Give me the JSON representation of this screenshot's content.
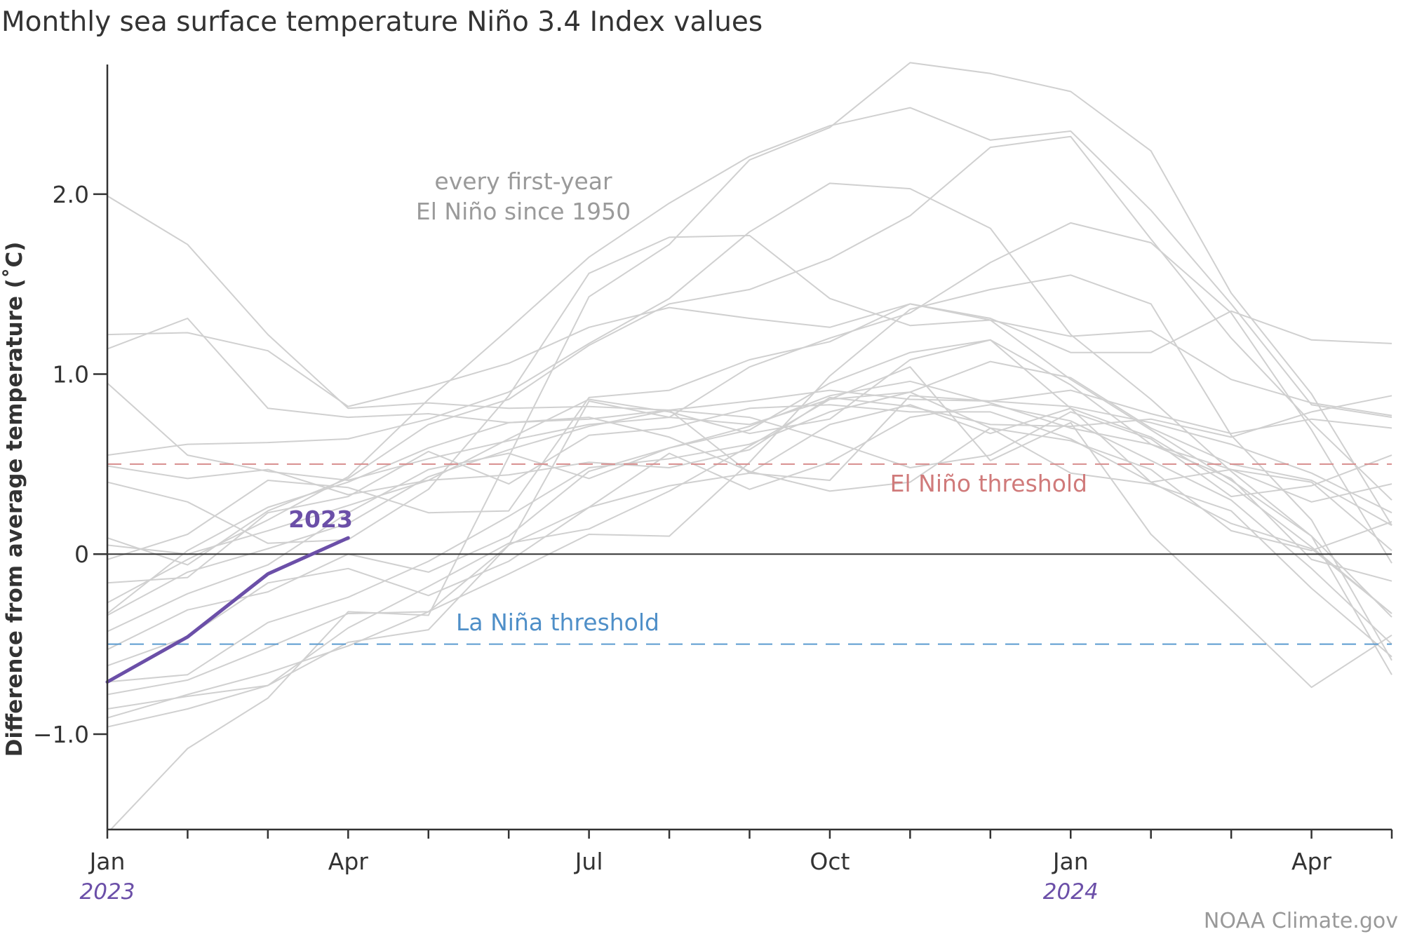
{
  "title": "Monthly sea surface temperature Niño 3.4 Index values",
  "ylabel": "Difference from average temperature (˚C)",
  "credit": "NOAA Climate.gov",
  "colors": {
    "background": "#ffffff",
    "text": "#333333",
    "axis": "#333333",
    "history_line": "#d0d0d0",
    "highlight": "#6b4fa8",
    "el_nino": "#d88e8e",
    "la_nina": "#5b9bd0",
    "annotation_gray": "#9a9a9a",
    "credit": "#999999"
  },
  "annotations": {
    "history_label_line1": "every first-year",
    "history_label_line2": "El Niño since 1950",
    "el_nino_label": "El Niño threshold",
    "la_nina_label": "La Niña threshold",
    "highlight_label": "2023"
  },
  "chart_data": {
    "type": "line",
    "title": "Monthly sea surface temperature Niño 3.4 Index values",
    "xlabel": "",
    "ylabel": "Difference from average temperature (˚C)",
    "x_months": [
      "Jan 2023",
      "Feb 2023",
      "Mar 2023",
      "Apr 2023",
      "May 2023",
      "Jun 2023",
      "Jul 2023",
      "Aug 2023",
      "Sep 2023",
      "Oct 2023",
      "Nov 2023",
      "Dec 2023",
      "Jan 2024",
      "Feb 2024",
      "Mar 2024",
      "Apr 2024",
      "May 2024"
    ],
    "x_tick_labels": [
      "Jan",
      "Apr",
      "Jul",
      "Oct",
      "Jan",
      "Apr"
    ],
    "x_tick_label_months": [
      "Jan 2023",
      "Apr 2023",
      "Jul 2023",
      "Oct 2023",
      "Jan 2024",
      "Apr 2024"
    ],
    "year_labels": [
      "2023",
      "2024"
    ],
    "year_label_months": [
      "Jan 2023",
      "Jan 2024"
    ],
    "y_ticks": [
      2.0,
      1.0,
      0,
      -1.0
    ],
    "y_tick_labels": [
      "2.0",
      "1.0",
      "0",
      "−1.0"
    ],
    "ylim": [
      -1.53,
      2.72
    ],
    "thresholds": [
      {
        "label": "El Niño threshold",
        "value": 0.5
      },
      {
        "label": "La Niña threshold",
        "value": -0.5
      }
    ],
    "highlight_series": {
      "name": "2023",
      "values": [
        -0.71,
        -0.46,
        -0.11,
        0.09
      ]
    },
    "background_series": [
      {
        "values": [
          1.99,
          1.72,
          1.22,
          0.81,
          0.84,
          0.81,
          0.82,
          0.8,
          0.45,
          0.41,
          0.88,
          0.85,
          0.82,
          0.73,
          0.61,
          0.45,
          0.23
        ]
      },
      {
        "values": [
          1.22,
          1.23,
          1.13,
          0.82,
          0.93,
          1.06,
          1.26,
          1.37,
          1.31,
          1.26,
          1.39,
          1.3,
          1.21,
          1.24,
          0.97,
          0.84,
          0.77
        ]
      },
      {
        "values": [
          1.14,
          1.31,
          0.81,
          0.76,
          0.78,
          0.73,
          0.75,
          0.8,
          0.85,
          0.91,
          0.86,
          0.85,
          0.91,
          0.78,
          0.67,
          0.75,
          0.7
        ]
      },
      {
        "values": [
          0.95,
          0.55,
          0.46,
          0.41,
          0.53,
          0.63,
          0.72,
          0.76,
          0.72,
          0.86,
          0.9,
          1.07,
          0.98,
          0.7,
          0.5,
          0.41,
          0.16
        ]
      },
      {
        "values": [
          0.55,
          0.61,
          0.62,
          0.64,
          0.75,
          0.9,
          1.17,
          1.42,
          1.79,
          2.06,
          2.03,
          1.81,
          1.22,
          0.86,
          0.46,
          0.1,
          -0.35
        ]
      },
      {
        "values": [
          0.49,
          0.42,
          0.47,
          0.33,
          0.41,
          0.44,
          0.51,
          0.48,
          0.58,
          0.87,
          0.82,
          0.72,
          0.71,
          0.75,
          0.65,
          0.79,
          0.88
        ]
      },
      {
        "values": [
          0.4,
          0.29,
          0.06,
          0.08,
          0.36,
          0.88,
          1.56,
          1.76,
          1.77,
          1.42,
          1.27,
          1.3,
          0.97,
          0.69,
          0.41,
          0.1,
          -0.67
        ]
      },
      {
        "values": [
          0.09,
          -0.06,
          0.24,
          0.42,
          0.72,
          0.86,
          1.16,
          1.39,
          1.47,
          1.64,
          1.88,
          2.26,
          2.32,
          1.75,
          1.2,
          0.73,
          0.3
        ]
      },
      {
        "values": [
          0.05,
          0.0,
          0.13,
          0.27,
          0.41,
          0.64,
          0.86,
          0.79,
          0.67,
          0.75,
          1.08,
          1.19,
          0.94,
          0.61,
          0.47,
          0.4,
          0.02
        ]
      },
      {
        "values": [
          -0.03,
          0.11,
          0.41,
          0.37,
          0.23,
          0.24,
          0.87,
          0.91,
          1.08,
          1.18,
          1.39,
          1.31,
          1.12,
          1.12,
          1.35,
          1.19,
          1.17
        ]
      },
      {
        "values": [
          -0.16,
          -0.13,
          0.23,
          0.32,
          0.57,
          0.39,
          0.66,
          0.7,
          0.81,
          0.83,
          0.79,
          0.79,
          0.64,
          0.4,
          0.47,
          0.29,
          0.39
        ]
      },
      {
        "values": [
          -0.27,
          -0.03,
          0.19,
          0.43,
          0.86,
          1.25,
          1.65,
          1.95,
          2.21,
          2.38,
          2.48,
          2.3,
          2.35,
          1.91,
          1.39,
          0.83,
          0.76
        ]
      },
      {
        "values": [
          -0.34,
          -0.1,
          0.03,
          0.17,
          0.43,
          0.58,
          0.71,
          0.8,
          0.76,
          0.63,
          0.48,
          0.55,
          0.79,
          0.64,
          0.32,
          0.38,
          0.55
        ]
      },
      {
        "values": [
          -0.43,
          -0.22,
          -0.06,
          0.23,
          0.47,
          0.56,
          0.42,
          0.59,
          0.69,
          0.95,
          1.12,
          1.19,
          0.81,
          0.65,
          0.38,
          0.04,
          -0.33
        ]
      },
      {
        "values": [
          -0.53,
          -0.31,
          -0.21,
          0.0,
          -0.1,
          0.1,
          0.46,
          0.59,
          0.71,
          0.88,
          0.96,
          0.84,
          0.7,
          0.61,
          0.42,
          -0.03,
          -0.15
        ]
      },
      {
        "values": [
          -0.62,
          -0.46,
          -0.16,
          -0.08,
          -0.23,
          -0.04,
          0.26,
          0.38,
          0.45,
          0.72,
          0.83,
          0.67,
          0.81,
          0.4,
          0.17,
          0.03,
          -0.33
        ]
      },
      {
        "values": [
          -0.71,
          -0.67,
          -0.38,
          -0.24,
          -0.04,
          0.21,
          0.48,
          0.53,
          0.61,
          0.79,
          0.9,
          0.7,
          0.45,
          0.39,
          0.24,
          -0.19,
          -0.57
        ]
      },
      {
        "values": [
          -0.78,
          -0.7,
          -0.52,
          -0.33,
          -0.32,
          0.05,
          0.26,
          0.56,
          0.36,
          0.51,
          0.76,
          0.83,
          0.74,
          0.52,
          0.3,
          -0.08,
          -0.5
        ]
      },
      {
        "values": [
          -0.86,
          -0.79,
          -0.73,
          -0.41,
          -0.18,
          0.06,
          0.14,
          0.35,
          0.6,
          0.86,
          1.04,
          0.52,
          0.73,
          0.11,
          -0.31,
          -0.74,
          -0.45
        ]
      },
      {
        "values": [
          -0.91,
          -0.78,
          -0.66,
          -0.51,
          -0.32,
          -0.11,
          0.11,
          0.1,
          0.51,
          0.99,
          1.36,
          1.47,
          1.55,
          1.39,
          0.66,
          0.19,
          -0.59
        ]
      },
      {
        "values": [
          -0.96,
          -0.86,
          -0.73,
          -0.49,
          -0.42,
          0.05,
          0.85,
          0.76,
          1.04,
          1.2,
          1.34,
          1.62,
          1.84,
          1.73,
          1.34,
          0.69,
          -0.05
        ]
      },
      {
        "values": [
          -1.55,
          -1.08,
          -0.8,
          -0.32,
          -0.34,
          0.54,
          1.43,
          1.72,
          2.19,
          2.37,
          2.73,
          2.67,
          2.57,
          2.24,
          1.45,
          0.89,
          0.16
        ]
      },
      {
        "values": [
          -0.33,
          0.02,
          0.26,
          0.4,
          0.59,
          0.73,
          0.76,
          0.65,
          0.46,
          0.35,
          0.4,
          0.7,
          0.63,
          0.47,
          0.13,
          0.02,
          0.18
        ]
      }
    ]
  }
}
